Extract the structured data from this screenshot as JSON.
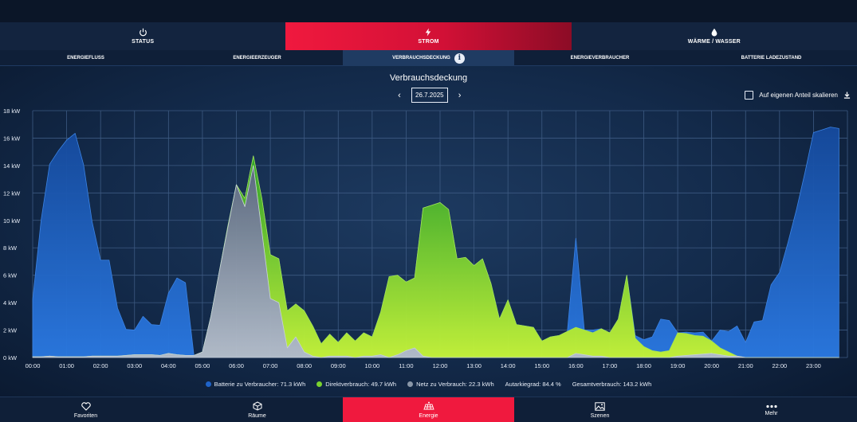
{
  "main_tabs": [
    {
      "label": "STATUS",
      "icon": "power-icon"
    },
    {
      "label": "STROM",
      "icon": "lightning-icon"
    },
    {
      "label": "WÄRME / WASSER",
      "icon": "water-drop-icon"
    }
  ],
  "sub_tabs": [
    "ENERGIEFLUSS",
    "ENERGIEERZEUGER",
    "VERBRAUCHSDECKUNG",
    "ENERGIEVERBRAUCHER",
    "BATTERIE LADEZUSTAND"
  ],
  "active_main_tab": "STROM",
  "active_sub_tab": "VERBRAUCHSDECKUNG",
  "page": {
    "title": "Verbrauchsdeckung",
    "date": "26.7.2025",
    "scale_option": "Auf eigenen Anteil skalieren"
  },
  "legend": {
    "battery": "Batterie zu Verbraucher: 71.3 kWh",
    "direct": "Direktverbrauch: 49.7 kWh",
    "grid": "Netz zu Verbrauch: 22.3 kWh",
    "autarky": "Autarkiegrad: 84.4 %",
    "total": "Gesamtverbrauch: 143.2 kWh"
  },
  "colors": {
    "accent": "#f0193e",
    "battery": "#1f63c9",
    "direct": "#7ad32e",
    "grid": "#8a97a8",
    "background": "#0c1a30"
  },
  "bottom_nav": [
    {
      "label": "Favoriten",
      "icon": "heart-icon"
    },
    {
      "label": "Räume",
      "icon": "cube-icon"
    },
    {
      "label": "Energie",
      "icon": "solar-panel-icon"
    },
    {
      "label": "Szenen",
      "icon": "image-icon"
    },
    {
      "label": "Mehr",
      "icon": "dots-icon"
    }
  ],
  "active_nav": "Energie",
  "chart_data": {
    "type": "area",
    "stacked": true,
    "ylim": [
      0,
      18
    ],
    "yticks": [
      "0 kW",
      "2 kW",
      "4 kW",
      "6 kW",
      "8 kW",
      "10 kW",
      "12 kW",
      "14 kW",
      "16 kW",
      "18 kW"
    ],
    "xticks": [
      "00:00",
      "01:00",
      "02:00",
      "03:00",
      "04:00",
      "05:00",
      "06:00",
      "07:00",
      "08:00",
      "09:00",
      "10:00",
      "11:00",
      "12:00",
      "13:00",
      "14:00",
      "15:00",
      "16:00",
      "17:00",
      "18:00",
      "19:00",
      "20:00",
      "21:00",
      "22:00",
      "23:00"
    ],
    "grid": true,
    "x_hours": [
      0,
      0.25,
      0.5,
      0.75,
      1,
      1.25,
      1.5,
      1.75,
      2,
      2.25,
      2.5,
      2.75,
      3,
      3.25,
      3.5,
      3.75,
      4,
      4.25,
      4.5,
      4.75,
      5,
      5.25,
      5.5,
      5.75,
      6,
      6.25,
      6.5,
      6.75,
      7,
      7.25,
      7.5,
      7.75,
      8,
      8.25,
      8.5,
      8.75,
      9,
      9.25,
      9.5,
      9.75,
      10,
      10.25,
      10.5,
      10.75,
      11,
      11.25,
      11.5,
      11.75,
      12,
      12.25,
      12.5,
      12.75,
      13,
      13.25,
      13.5,
      13.75,
      14,
      14.25,
      14.5,
      14.75,
      15,
      15.25,
      15.5,
      15.75,
      16,
      16.25,
      16.5,
      16.75,
      17,
      17.25,
      17.5,
      17.75,
      18,
      18.25,
      18.5,
      18.75,
      19,
      19.25,
      19.5,
      19.75,
      20,
      20.25,
      20.5,
      20.75,
      21,
      21.25,
      21.5,
      21.75,
      22,
      22.25,
      22.5,
      22.75,
      23,
      23.25,
      23.5,
      23.75
    ],
    "series": [
      {
        "name": "Netz zu Verbrauch",
        "values": [
          0.05,
          0.05,
          0.1,
          0.05,
          0.05,
          0.05,
          0.05,
          0.1,
          0.1,
          0.1,
          0.1,
          0.15,
          0.2,
          0.2,
          0.2,
          0.15,
          0.3,
          0.2,
          0.15,
          0.15,
          0.4,
          3.0,
          6.3,
          9.5,
          12.6,
          11.0,
          14.0,
          9.2,
          4.3,
          4.0,
          0.7,
          1.5,
          0.4,
          0.1,
          0,
          0.1,
          0.1,
          0.1,
          0,
          0.1,
          0.1,
          0.2,
          0,
          0.2,
          0.5,
          0.7,
          0.1,
          0,
          0,
          0,
          0,
          0,
          0,
          0,
          0,
          0,
          0,
          0,
          0,
          0,
          0,
          0,
          0,
          0,
          0.3,
          0.2,
          0.1,
          0.1,
          0,
          0,
          0,
          0,
          0,
          0,
          0,
          0,
          0.1,
          0.15,
          0.2,
          0.25,
          0.3,
          0.2,
          0.1,
          0.1,
          0,
          0,
          0,
          0,
          0,
          0,
          0,
          0,
          0,
          0,
          0,
          0
        ]
      },
      {
        "name": "Direktverbrauch",
        "values": [
          0,
          0,
          0,
          0,
          0,
          0,
          0,
          0,
          0,
          0,
          0,
          0,
          0,
          0,
          0,
          0,
          0,
          0,
          0,
          0,
          0,
          0,
          0,
          0.1,
          0,
          0.6,
          0.7,
          2.4,
          3.2,
          3.2,
          2.7,
          2.4,
          3.0,
          2.2,
          1.0,
          1.6,
          1.0,
          1.7,
          1.2,
          1.7,
          1.4,
          3.1,
          5.9,
          5.8,
          5.0,
          5.1,
          10.8,
          11.1,
          11.3,
          10.8,
          7.2,
          7.3,
          6.7,
          7.2,
          5.4,
          2.8,
          4.2,
          2.4,
          2.3,
          2.2,
          1.2,
          1.5,
          1.6,
          1.9,
          1.9,
          1.8,
          1.7,
          2.0,
          1.8,
          2.8,
          6.0,
          1.4,
          0.8,
          0.5,
          0.4,
          0.5,
          1.7,
          1.6,
          1.4,
          1.3,
          0.9,
          0.5,
          0.3,
          0,
          0,
          0,
          0,
          0,
          0,
          0,
          0,
          0,
          0,
          0,
          0,
          0
        ]
      },
      {
        "name": "Batterie zu Verbraucher",
        "values": [
          4.2,
          10.0,
          14.0,
          15.0,
          15.8,
          16.3,
          14.0,
          9.8,
          7.0,
          7.0,
          3.5,
          1.9,
          1.8,
          2.8,
          2.2,
          2.2,
          4.4,
          5.6,
          5.3,
          0,
          0,
          0,
          0,
          0,
          0,
          0,
          0,
          0,
          0,
          0,
          0,
          0,
          0,
          0,
          0,
          0,
          0,
          0,
          0,
          0,
          0,
          0,
          0,
          0,
          0,
          0,
          0,
          0,
          0,
          0,
          0,
          0,
          0,
          0,
          0,
          0,
          0,
          0,
          0,
          0,
          0,
          0,
          0,
          0,
          6.5,
          0,
          0.2,
          0,
          0,
          0,
          0,
          0.2,
          0.5,
          1.0,
          2.4,
          2.2,
          0,
          0.1,
          0.2,
          0.3,
          0,
          1.3,
          1.5,
          2.2,
          1.1,
          2.6,
          2.7,
          5.3,
          6.2,
          8.4,
          10.8,
          13.5,
          16.4,
          16.6,
          16.8,
          16.7
        ]
      }
    ]
  }
}
